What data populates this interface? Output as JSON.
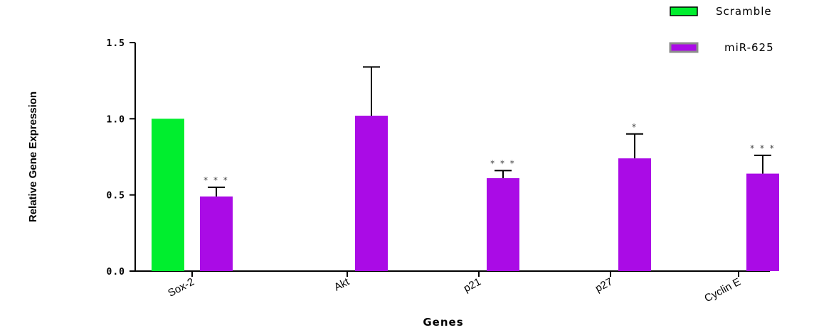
{
  "chart_data": {
    "type": "bar",
    "xlabel": "Genes",
    "ylabel": "Relative Gene Expression",
    "ylim": [
      0,
      1.5
    ],
    "yticks": [
      "0.0",
      "0.5",
      "1.0",
      "1.5"
    ],
    "categories": [
      "Sox-2",
      "Akt",
      "p21",
      "p27",
      "Cyclin E"
    ],
    "series": [
      {
        "name": "Scramble",
        "color": "#00ee2e",
        "values": [
          1.0,
          null,
          null,
          null,
          null
        ],
        "errors": [
          null,
          null,
          null,
          null,
          null
        ]
      },
      {
        "name": "miR-625",
        "color": "#aa0be6",
        "values": [
          0.49,
          1.02,
          0.61,
          0.74,
          0.64
        ],
        "errors": [
          0.06,
          0.32,
          0.05,
          0.16,
          0.12
        ]
      }
    ],
    "significance": [
      "* * *",
      "",
      "* * *",
      "*",
      "* * *"
    ],
    "legend_position": "top-right",
    "grid": false
  }
}
